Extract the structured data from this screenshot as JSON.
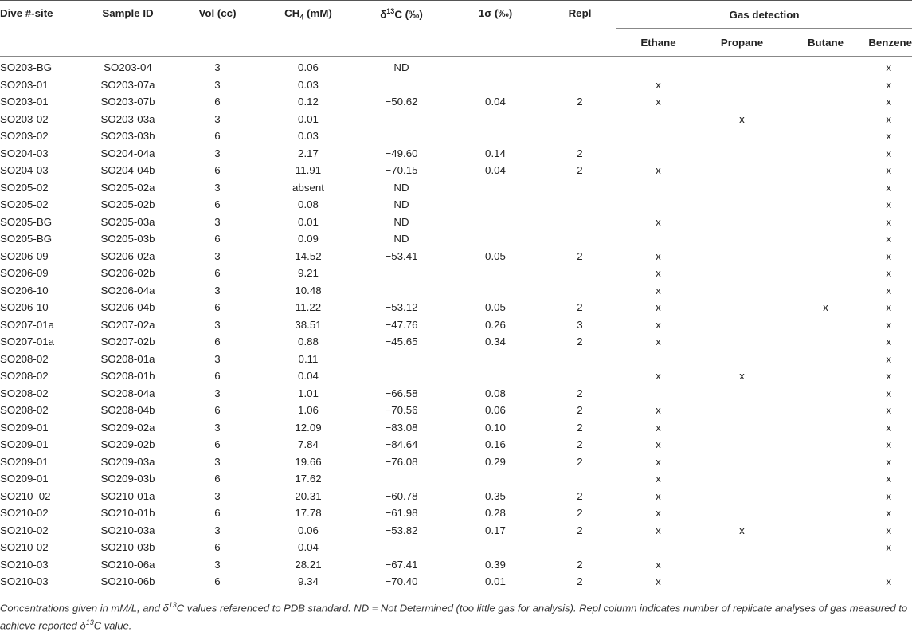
{
  "headers": {
    "dive": "Dive #-site",
    "sample": "Sample ID",
    "vol": "Vol (cc)",
    "ch4_main": "CH",
    "ch4_sub": "4",
    "ch4_unit": " (mM)",
    "d13c_pre": "δ",
    "d13c_sup": "13",
    "d13c_post": "C (‰)",
    "sigma": "1σ (‰)",
    "repl": "Repl",
    "gas_detection": "Gas detection",
    "ethane": "Ethane",
    "propane": "Propane",
    "butane": "Butane",
    "benzene": "Benzene"
  },
  "rows": [
    {
      "dive": "SO203-BG",
      "sample": "SO203-04",
      "vol": "3",
      "ch4": "0.06",
      "d13c": "ND",
      "sigma": "",
      "repl": "",
      "ethane": "",
      "propane": "",
      "butane": "",
      "benzene": "x"
    },
    {
      "dive": "SO203-01",
      "sample": "SO203-07a",
      "vol": "3",
      "ch4": "0.03",
      "d13c": "",
      "sigma": "",
      "repl": "",
      "ethane": "x",
      "propane": "",
      "butane": "",
      "benzene": "x"
    },
    {
      "dive": "SO203-01",
      "sample": "SO203-07b",
      "vol": "6",
      "ch4": "0.12",
      "d13c": "−50.62",
      "sigma": "0.04",
      "repl": "2",
      "ethane": "x",
      "propane": "",
      "butane": "",
      "benzene": "x"
    },
    {
      "dive": "SO203-02",
      "sample": "SO203-03a",
      "vol": "3",
      "ch4": "0.01",
      "d13c": "",
      "sigma": "",
      "repl": "",
      "ethane": "",
      "propane": "x",
      "butane": "",
      "benzene": "x"
    },
    {
      "dive": "SO203-02",
      "sample": "SO203-03b",
      "vol": "6",
      "ch4": "0.03",
      "d13c": "",
      "sigma": "",
      "repl": "",
      "ethane": "",
      "propane": "",
      "butane": "",
      "benzene": "x"
    },
    {
      "dive": "SO204-03",
      "sample": "SO204-04a",
      "vol": "3",
      "ch4": "2.17",
      "d13c": "−49.60",
      "sigma": "0.14",
      "repl": "2",
      "ethane": "",
      "propane": "",
      "butane": "",
      "benzene": "x"
    },
    {
      "dive": "SO204-03",
      "sample": "SO204-04b",
      "vol": "6",
      "ch4": "11.91",
      "d13c": "−70.15",
      "sigma": "0.04",
      "repl": "2",
      "ethane": "x",
      "propane": "",
      "butane": "",
      "benzene": "x"
    },
    {
      "dive": "SO205-02",
      "sample": "SO205-02a",
      "vol": "3",
      "ch4": "absent",
      "d13c": "ND",
      "sigma": "",
      "repl": "",
      "ethane": "",
      "propane": "",
      "butane": "",
      "benzene": "x"
    },
    {
      "dive": "SO205-02",
      "sample": "SO205-02b",
      "vol": "6",
      "ch4": "0.08",
      "d13c": "ND",
      "sigma": "",
      "repl": "",
      "ethane": "",
      "propane": "",
      "butane": "",
      "benzene": "x"
    },
    {
      "dive": "SO205-BG",
      "sample": "SO205-03a",
      "vol": "3",
      "ch4": "0.01",
      "d13c": "ND",
      "sigma": "",
      "repl": "",
      "ethane": "x",
      "propane": "",
      "butane": "",
      "benzene": "x"
    },
    {
      "dive": "SO205-BG",
      "sample": "SO205-03b",
      "vol": "6",
      "ch4": "0.09",
      "d13c": "ND",
      "sigma": "",
      "repl": "",
      "ethane": "",
      "propane": "",
      "butane": "",
      "benzene": "x"
    },
    {
      "dive": "SO206-09",
      "sample": "SO206-02a",
      "vol": "3",
      "ch4": "14.52",
      "d13c": "−53.41",
      "sigma": "0.05",
      "repl": "2",
      "ethane": "x",
      "propane": "",
      "butane": "",
      "benzene": "x"
    },
    {
      "dive": "SO206-09",
      "sample": "SO206-02b",
      "vol": "6",
      "ch4": "9.21",
      "d13c": "",
      "sigma": "",
      "repl": "",
      "ethane": "x",
      "propane": "",
      "butane": "",
      "benzene": "x"
    },
    {
      "dive": "SO206-10",
      "sample": "SO206-04a",
      "vol": "3",
      "ch4": "10.48",
      "d13c": "",
      "sigma": "",
      "repl": "",
      "ethane": "x",
      "propane": "",
      "butane": "",
      "benzene": "x"
    },
    {
      "dive": "SO206-10",
      "sample": "SO206-04b",
      "vol": "6",
      "ch4": "11.22",
      "d13c": "−53.12",
      "sigma": "0.05",
      "repl": "2",
      "ethane": "x",
      "propane": "",
      "butane": "x",
      "benzene": "x"
    },
    {
      "dive": "SO207-01a",
      "sample": "SO207-02a",
      "vol": "3",
      "ch4": "38.51",
      "d13c": "−47.76",
      "sigma": "0.26",
      "repl": "3",
      "ethane": "x",
      "propane": "",
      "butane": "",
      "benzene": "x"
    },
    {
      "dive": "SO207-01a",
      "sample": "SO207-02b",
      "vol": "6",
      "ch4": "0.88",
      "d13c": "−45.65",
      "sigma": "0.34",
      "repl": "2",
      "ethane": "x",
      "propane": "",
      "butane": "",
      "benzene": "x"
    },
    {
      "dive": "SO208-02",
      "sample": "SO208-01a",
      "vol": "3",
      "ch4": "0.11",
      "d13c": "",
      "sigma": "",
      "repl": "",
      "ethane": "",
      "propane": "",
      "butane": "",
      "benzene": "x"
    },
    {
      "dive": "SO208-02",
      "sample": "SO208-01b",
      "vol": "6",
      "ch4": "0.04",
      "d13c": "",
      "sigma": "",
      "repl": "",
      "ethane": "x",
      "propane": "x",
      "butane": "",
      "benzene": "x"
    },
    {
      "dive": "SO208-02",
      "sample": "SO208-04a",
      "vol": "3",
      "ch4": "1.01",
      "d13c": "−66.58",
      "sigma": "0.08",
      "repl": "2",
      "ethane": "",
      "propane": "",
      "butane": "",
      "benzene": "x"
    },
    {
      "dive": "SO208-02",
      "sample": "SO208-04b",
      "vol": "6",
      "ch4": "1.06",
      "d13c": "−70.56",
      "sigma": "0.06",
      "repl": "2",
      "ethane": "x",
      "propane": "",
      "butane": "",
      "benzene": "x"
    },
    {
      "dive": "SO209-01",
      "sample": "SO209-02a",
      "vol": "3",
      "ch4": "12.09",
      "d13c": "−83.08",
      "sigma": "0.10",
      "repl": "2",
      "ethane": "x",
      "propane": "",
      "butane": "",
      "benzene": "x"
    },
    {
      "dive": "SO209-01",
      "sample": "SO209-02b",
      "vol": "6",
      "ch4": "7.84",
      "d13c": "−84.64",
      "sigma": "0.16",
      "repl": "2",
      "ethane": "x",
      "propane": "",
      "butane": "",
      "benzene": "x"
    },
    {
      "dive": "SO209-01",
      "sample": "SO209-03a",
      "vol": "3",
      "ch4": "19.66",
      "d13c": "−76.08",
      "sigma": "0.29",
      "repl": "2",
      "ethane": "x",
      "propane": "",
      "butane": "",
      "benzene": "x"
    },
    {
      "dive": "SO209-01",
      "sample": "SO209-03b",
      "vol": "6",
      "ch4": "17.62",
      "d13c": "",
      "sigma": "",
      "repl": "",
      "ethane": "x",
      "propane": "",
      "butane": "",
      "benzene": "x"
    },
    {
      "dive": "SO210–02",
      "sample": "SO210-01a",
      "vol": "3",
      "ch4": "20.31",
      "d13c": "−60.78",
      "sigma": "0.35",
      "repl": "2",
      "ethane": "x",
      "propane": "",
      "butane": "",
      "benzene": "x"
    },
    {
      "dive": "SO210-02",
      "sample": "SO210-01b",
      "vol": "6",
      "ch4": "17.78",
      "d13c": "−61.98",
      "sigma": "0.28",
      "repl": "2",
      "ethane": "x",
      "propane": "",
      "butane": "",
      "benzene": "x"
    },
    {
      "dive": "SO210-02",
      "sample": "SO210-03a",
      "vol": "3",
      "ch4": "0.06",
      "d13c": "−53.82",
      "sigma": "0.17",
      "repl": "2",
      "ethane": "x",
      "propane": "x",
      "butane": "",
      "benzene": "x"
    },
    {
      "dive": "SO210-02",
      "sample": "SO210-03b",
      "vol": "6",
      "ch4": "0.04",
      "d13c": "",
      "sigma": "",
      "repl": "",
      "ethane": "",
      "propane": "",
      "butane": "",
      "benzene": "x"
    },
    {
      "dive": "SO210-03",
      "sample": "SO210-06a",
      "vol": "3",
      "ch4": "28.21",
      "d13c": "−67.41",
      "sigma": "0.39",
      "repl": "2",
      "ethane": "x",
      "propane": "",
      "butane": "",
      "benzene": ""
    },
    {
      "dive": "SO210-03",
      "sample": "SO210-06b",
      "vol": "6",
      "ch4": "9.34",
      "d13c": "−70.40",
      "sigma": "0.01",
      "repl": "2",
      "ethane": "x",
      "propane": "",
      "butane": "",
      "benzene": "x"
    }
  ],
  "footnote": {
    "part1": "Concentrations given in mM/L, and ",
    "d13c_pre": "δ",
    "d13c_sup": "13",
    "part2": "C values referenced to PDB standard. ND = Not Determined (too little gas for analysis). Repl column indicates number of replicate analyses of gas measured to achieve reported ",
    "part3": "C value."
  }
}
